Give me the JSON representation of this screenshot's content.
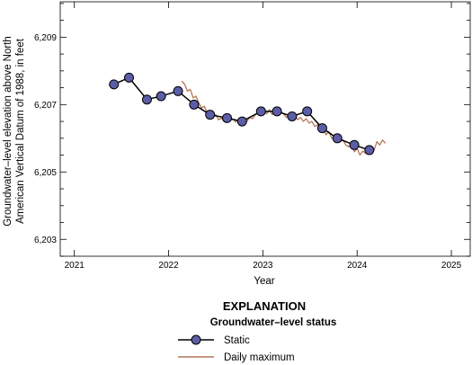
{
  "chart_data": {
    "type": "line",
    "xlabel": "Year",
    "ylabel_lines": [
      "Groundwater–level elevation above North",
      "American Vertical Datum of 1988, in feet"
    ],
    "xlim": [
      2020.85,
      2025.2
    ],
    "ylim": [
      6202.5,
      6210.05
    ],
    "x_ticks": [
      2021,
      2022,
      2023,
      2024,
      2025
    ],
    "x_tick_labels": [
      "2021",
      "2022",
      "2023",
      "2024",
      "2025"
    ],
    "y_ticks": [
      6203,
      6205,
      6207,
      6209
    ],
    "y_tick_labels": [
      "6,203",
      "6,205",
      "6,207",
      "6,209"
    ],
    "y_minor_step": 0.5,
    "grid": false,
    "series": [
      {
        "name": "Static",
        "style": "line-with-markers",
        "color": "#000000",
        "marker_color": "#5b5ea6",
        "x": [
          2021.42,
          2021.58,
          2021.77,
          2021.92,
          2022.1,
          2022.27,
          2022.44,
          2022.62,
          2022.78,
          2022.98,
          2023.15,
          2023.31,
          2023.47,
          2023.63,
          2023.79,
          2023.97,
          2024.13
        ],
        "y": [
          6207.6,
          6207.8,
          6207.15,
          6207.25,
          6207.4,
          6207.0,
          6206.7,
          6206.6,
          6206.5,
          6206.8,
          6206.8,
          6206.65,
          6206.8,
          6206.3,
          6206.0,
          6205.8,
          6205.65
        ]
      },
      {
        "name": "Daily maximum",
        "style": "line",
        "color": "#b4775a",
        "x": [
          2022.14,
          2022.17,
          2022.2,
          2022.23,
          2022.26,
          2022.29,
          2022.32,
          2022.35,
          2022.38,
          2022.41,
          2022.44,
          2022.47,
          2022.5,
          2022.53,
          2022.56,
          2022.59,
          2022.62,
          2022.65,
          2022.68,
          2022.71,
          2022.74,
          2022.77,
          2022.8,
          2022.83,
          2022.86,
          2022.89,
          2022.92,
          2022.95,
          2022.98,
          2023.01,
          2023.04,
          2023.07,
          2023.1,
          2023.13,
          2023.16,
          2023.19,
          2023.22,
          2023.25,
          2023.28,
          2023.31,
          2023.34,
          2023.37,
          2023.4,
          2023.43,
          2023.46,
          2023.49,
          2023.52,
          2023.55,
          2023.58,
          2023.61,
          2023.64,
          2023.67,
          2023.7,
          2023.73,
          2023.76,
          2023.79,
          2023.82,
          2023.85,
          2023.88,
          2023.91,
          2023.94,
          2023.97,
          2024.0,
          2024.03,
          2024.06,
          2024.09,
          2024.12,
          2024.15,
          2024.18,
          2024.21,
          2024.24,
          2024.27,
          2024.3
        ],
        "y": [
          6207.7,
          6207.6,
          6207.4,
          6207.45,
          6207.2,
          6207.25,
          6207.05,
          6206.9,
          6206.95,
          6206.75,
          6206.8,
          6206.6,
          6206.7,
          6206.55,
          6206.6,
          6206.5,
          6206.62,
          6206.52,
          6206.58,
          6206.48,
          6206.55,
          6206.45,
          6206.55,
          6206.5,
          6206.62,
          6206.58,
          6206.7,
          6206.75,
          6206.78,
          6206.9,
          6206.72,
          6206.85,
          6206.7,
          6206.8,
          6206.68,
          6206.75,
          6206.72,
          6206.62,
          6206.7,
          6206.6,
          6206.68,
          6206.55,
          6206.62,
          6206.5,
          6206.58,
          6206.45,
          6206.5,
          6206.35,
          6206.4,
          6206.25,
          6206.3,
          6206.1,
          6206.2,
          6206.0,
          6206.05,
          6205.95,
          6205.9,
          6205.95,
          6205.8,
          6205.75,
          6205.85,
          6205.6,
          6205.7,
          6205.5,
          6205.62,
          6205.55,
          6205.7,
          6205.75,
          6205.65,
          6205.9,
          6205.8,
          6205.95,
          6205.85
        ]
      }
    ],
    "legend": {
      "heading": "EXPLANATION",
      "subheading": "Groundwater–level status",
      "placement": "bottom-center",
      "entries": [
        "Static",
        "Daily maximum"
      ]
    }
  }
}
